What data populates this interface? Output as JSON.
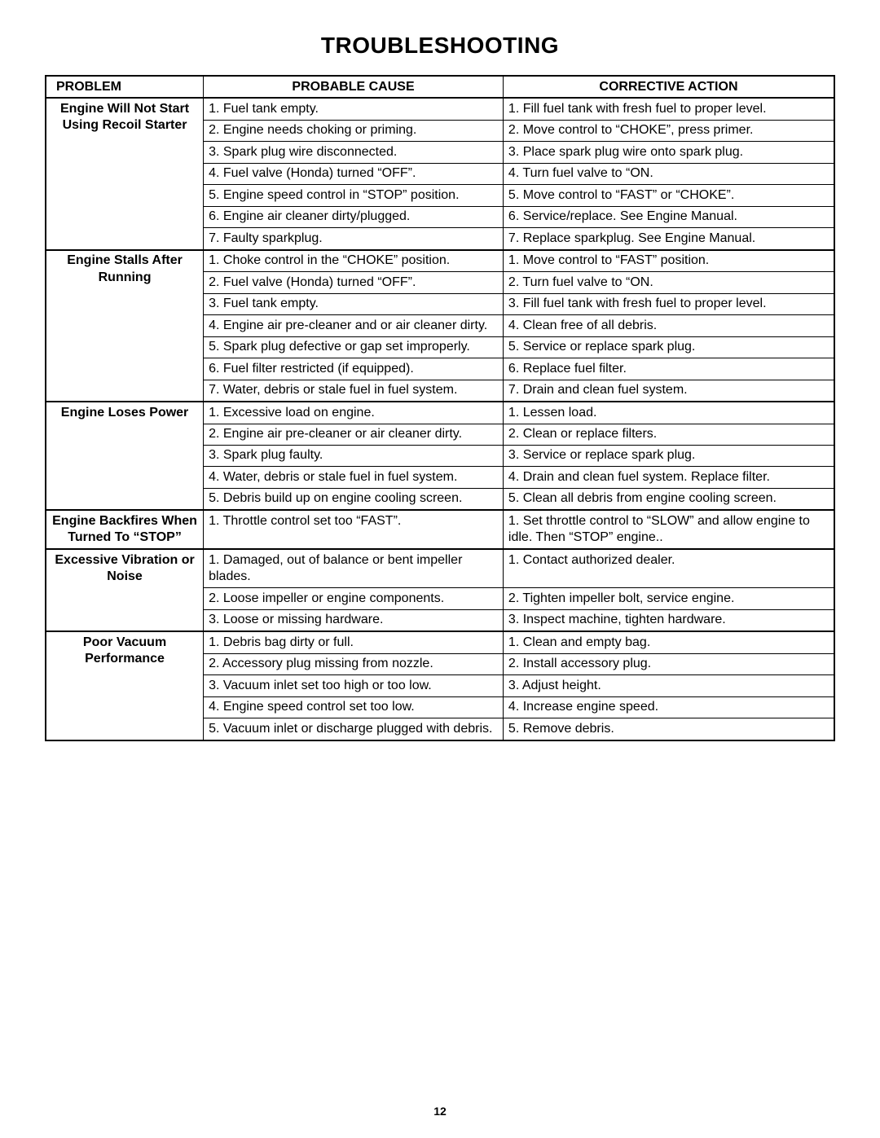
{
  "title": "TROUBLESHOOTING",
  "page_number": "12",
  "headers": {
    "problem": "PROBLEM",
    "cause": "PROBABLE CAUSE",
    "action": "CORRECTIVE ACTION"
  },
  "sections": [
    {
      "problem": "Engine Will Not Start Using Recoil Starter",
      "rows": [
        {
          "cause": "1. Fuel tank empty.",
          "action": "1. Fill fuel tank with fresh fuel to proper level."
        },
        {
          "cause": "2. Engine needs choking or priming.",
          "action": "2. Move control to “CHOKE”, press primer."
        },
        {
          "cause": "3. Spark plug wire disconnected.",
          "action": "3. Place spark plug wire onto spark plug."
        },
        {
          "cause": "4. Fuel valve (Honda) turned “OFF”.",
          "action": "4. Turn fuel valve to “ON."
        },
        {
          "cause": "5. Engine speed control in “STOP” position.",
          "action": "5. Move control to “FAST” or “CHOKE”."
        },
        {
          "cause": "6. Engine air cleaner dirty/plugged.",
          "action": "6. Service/replace. See Engine Manual."
        },
        {
          "cause": "7. Faulty sparkplug.",
          "action": "7. Replace sparkplug. See Engine Manual."
        }
      ]
    },
    {
      "problem": "Engine Stalls After Running",
      "rows": [
        {
          "cause": "1. Choke control in the “CHOKE” position.",
          "action": "1. Move control to “FAST” position."
        },
        {
          "cause": "2. Fuel valve (Honda) turned “OFF”.",
          "action": "2. Turn fuel valve to “ON."
        },
        {
          "cause": "3. Fuel tank empty.",
          "action": "3. Fill fuel tank with fresh fuel to proper level."
        },
        {
          "cause": "4. Engine air pre-cleaner and or air cleaner dirty.",
          "action": "4. Clean free of all debris."
        },
        {
          "cause": "5. Spark plug defective or gap set improperly.",
          "action": "5. Service or replace spark plug."
        },
        {
          "cause": "6. Fuel filter restricted (if equipped).",
          "action": "6. Replace fuel filter."
        },
        {
          "cause": "7. Water, debris or stale fuel in fuel system.",
          "action": "7. Drain and clean fuel system."
        }
      ]
    },
    {
      "problem": "Engine Loses Power",
      "rows": [
        {
          "cause": "1. Excessive load on engine.",
          "action": "1. Lessen load."
        },
        {
          "cause": "2. Engine air pre-cleaner or air cleaner dirty.",
          "action": "2. Clean or replace filters."
        },
        {
          "cause": "3. Spark plug faulty.",
          "action": "3. Service or replace spark plug."
        },
        {
          "cause": "4. Water, debris or stale fuel in fuel system.",
          "action": "4. Drain and clean fuel system. Replace filter."
        },
        {
          "cause": "5. Debris build up on engine cooling screen.",
          "action": "5. Clean all debris from engine cooling screen."
        }
      ]
    },
    {
      "problem": "Engine Backfires When Turned To “STOP”",
      "rows": [
        {
          "cause": "1. Throttle control set too “FAST”.",
          "action": "1. Set throttle control to “SLOW” and allow engine to idle.  Then “STOP” engine.."
        }
      ]
    },
    {
      "problem": "Excessive Vibration or Noise",
      "rows": [
        {
          "cause": "1. Damaged, out of balance or bent impeller blades.",
          "action": "1. Contact authorized dealer."
        },
        {
          "cause": "2. Loose impeller or engine components.",
          "action": "2. Tighten impeller bolt, service engine."
        },
        {
          "cause": "3. Loose or missing hardware.",
          "action": "3. Inspect machine, tighten hardware."
        }
      ]
    },
    {
      "problem": "Poor Vacuum Performance",
      "rows": [
        {
          "cause": "1. Debris bag dirty or full.",
          "action": "1. Clean and empty bag."
        },
        {
          "cause": "2. Accessory plug missing from nozzle.",
          "action": "2. Install accessory plug."
        },
        {
          "cause": "3. Vacuum inlet set too high or too low.",
          "action": "3. Adjust height."
        },
        {
          "cause": "4. Engine speed control set too low.",
          "action": "4. Increase engine speed."
        },
        {
          "cause": "5. Vacuum inlet or discharge plugged with debris.",
          "action": "5. Remove debris."
        }
      ]
    }
  ]
}
